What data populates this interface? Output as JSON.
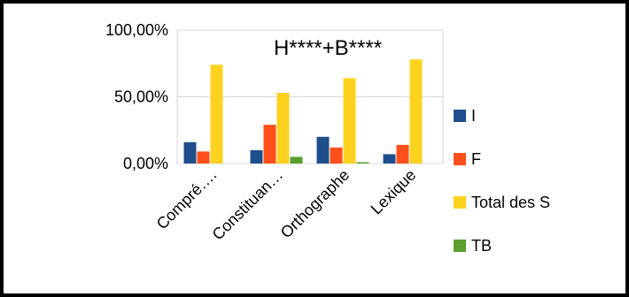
{
  "chart_data": {
    "type": "bar",
    "title": "H****+B****",
    "categories": [
      "Compré….",
      "Constituan…",
      "Orthographe",
      "Lexique"
    ],
    "series": [
      {
        "name": "I",
        "color": "#1F4E8C",
        "values": [
          16,
          10,
          20,
          7
        ]
      },
      {
        "name": "F",
        "color": "#FF4F1A",
        "values": [
          9,
          29,
          12,
          14
        ]
      },
      {
        "name": "Total des S",
        "color": "#FFD21F",
        "values": [
          74,
          53,
          64,
          78
        ]
      },
      {
        "name": "TB",
        "color": "#5A9E2F",
        "values": [
          0,
          5,
          1,
          0
        ]
      }
    ],
    "yticks": [
      "0,00%",
      "50,00%",
      "100,00%"
    ],
    "ylim": [
      0,
      100
    ],
    "grid": true,
    "legend": "right",
    "xlabel": "",
    "ylabel": ""
  }
}
